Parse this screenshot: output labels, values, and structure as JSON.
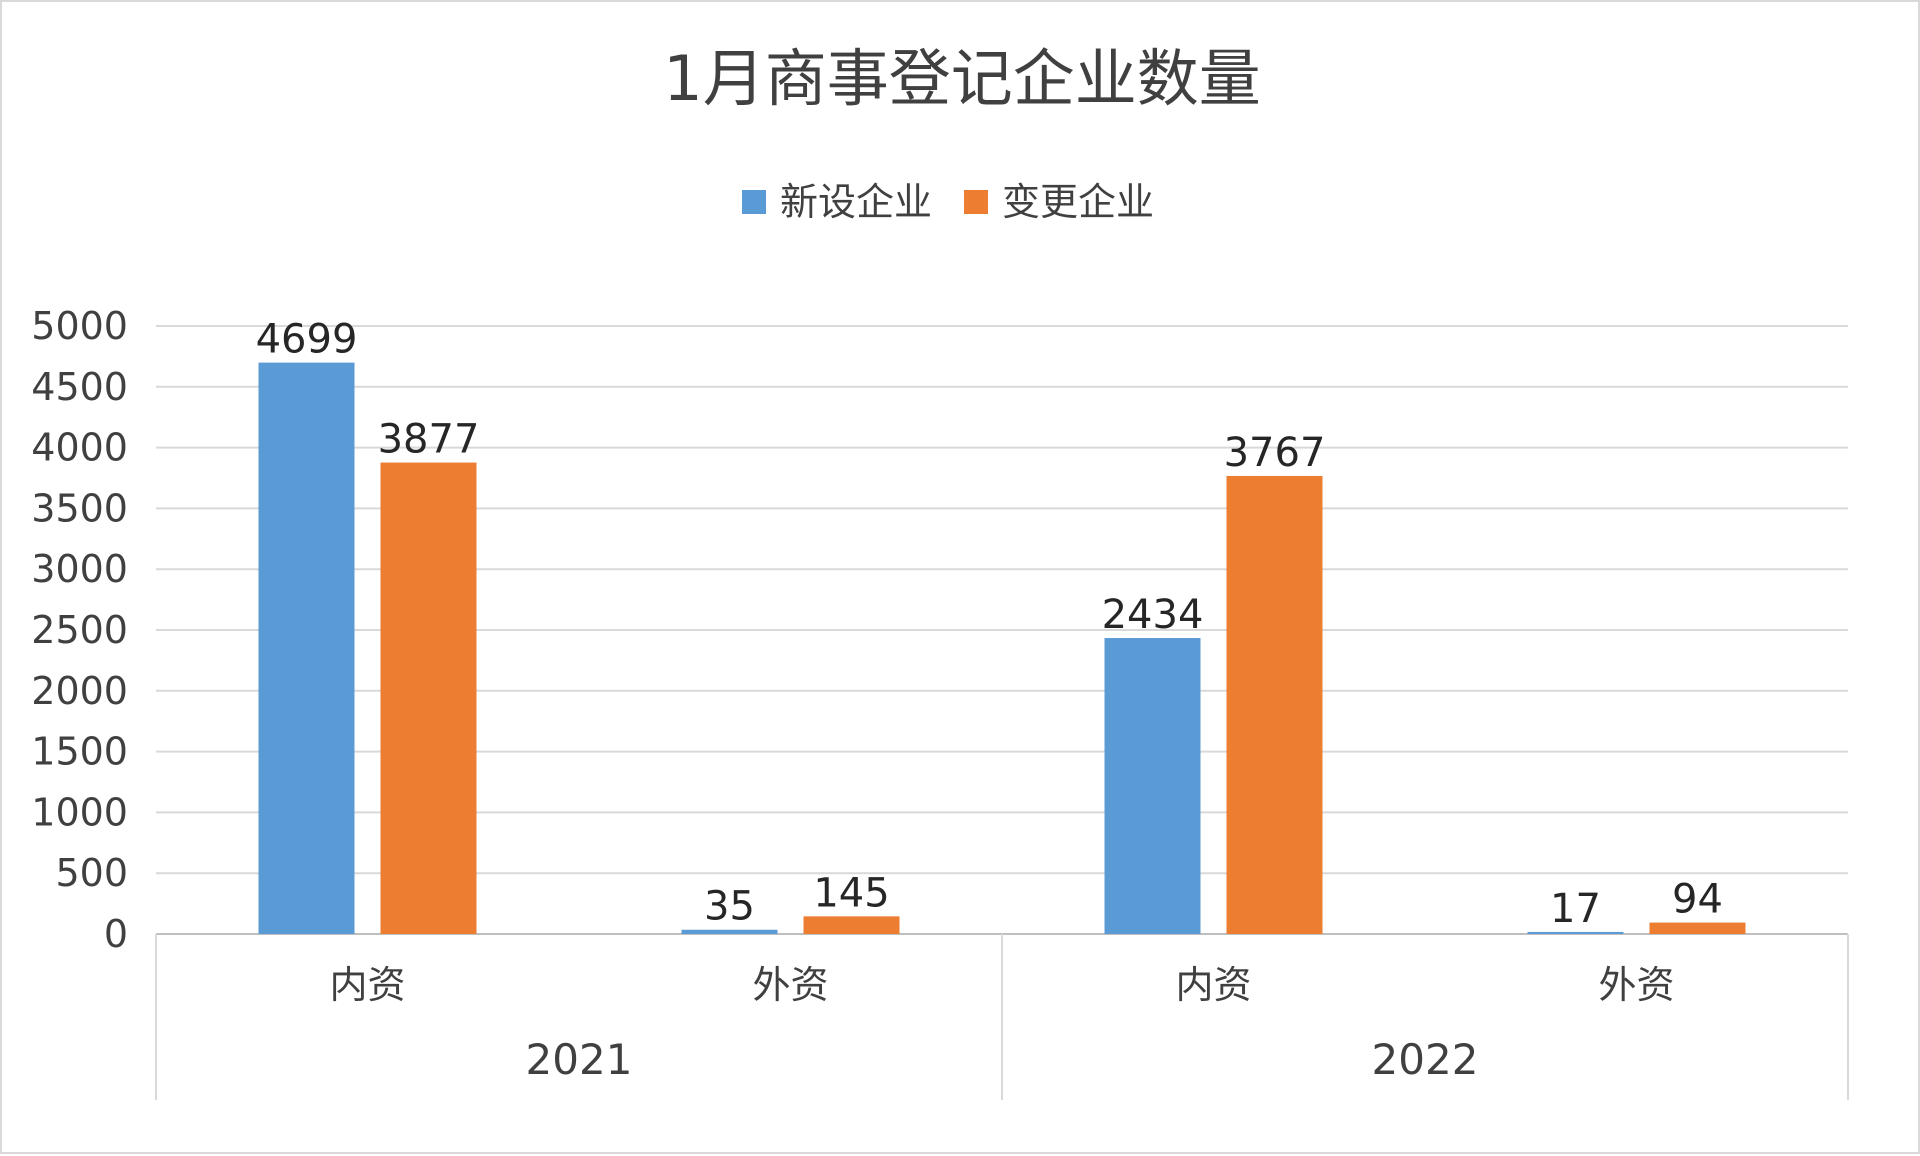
{
  "chart_data": {
    "type": "bar",
    "title": "1月商事登记企业数量",
    "groups": [
      {
        "label": "2021",
        "categories": [
          "内资",
          "外资"
        ]
      },
      {
        "label": "2022",
        "categories": [
          "内资",
          "外资"
        ]
      }
    ],
    "categories": [
      "内资",
      "外资",
      "内资",
      "外资"
    ],
    "series": [
      {
        "name": "新设企业",
        "color": "#5b9bd5",
        "values": [
          4699,
          35,
          2434,
          17
        ]
      },
      {
        "name": "变更企业",
        "color": "#ed7d31",
        "values": [
          3877,
          145,
          3767,
          94
        ]
      }
    ],
    "ylim": [
      0,
      5000
    ],
    "yticks": [
      0,
      500,
      1000,
      1500,
      2000,
      2500,
      3000,
      3500,
      4000,
      4500,
      5000
    ],
    "grid": true,
    "legend_position": "top",
    "data_labels": true
  }
}
